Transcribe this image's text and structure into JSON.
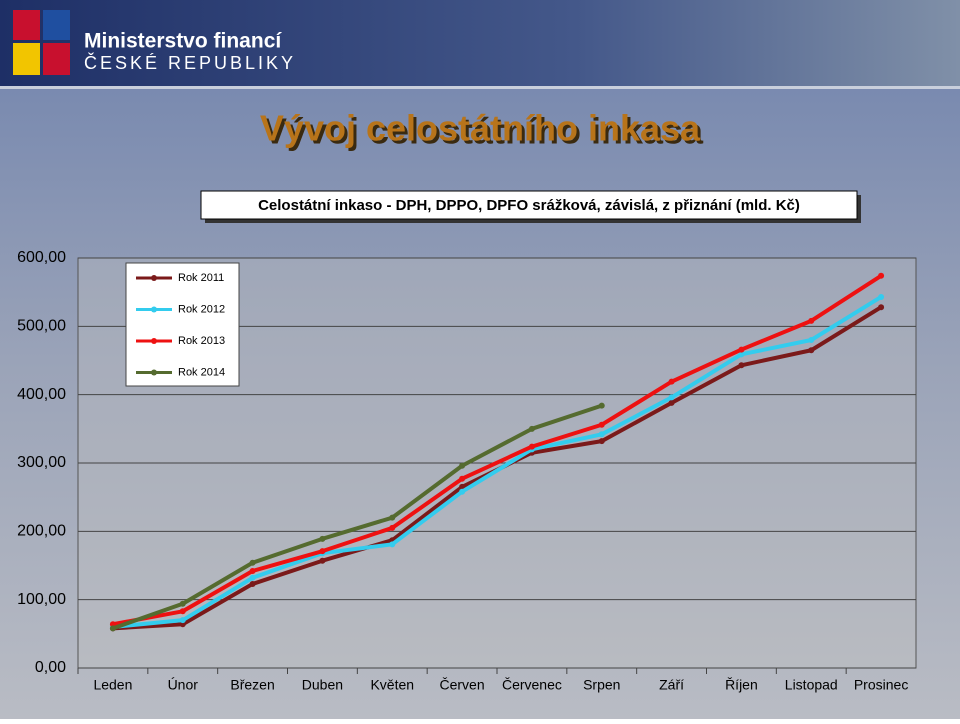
{
  "header": {
    "line1": "Ministerstvo financí",
    "line2": "ČESKÉ REPUBLIKY"
  },
  "slide_title": "Vývoj celostátního inkasa",
  "chart_data": {
    "type": "line",
    "title": "Celostátní inkaso - DPH, DPPO, DPFO srážková, závislá, z přiznání (mld. Kč)",
    "categories": [
      "Leden",
      "Únor",
      "Březen",
      "Duben",
      "Květen",
      "Červen",
      "Červenec",
      "Srpen",
      "Září",
      "Říjen",
      "Listopad",
      "Prosinec"
    ],
    "series": [
      {
        "name": "Rok 2011",
        "color": "#7b1a1a",
        "values": [
          58,
          64,
          123,
          157,
          187,
          265,
          315,
          332,
          388,
          443,
          465,
          528
        ]
      },
      {
        "name": "Rok 2012",
        "color": "#33ccee",
        "values": [
          60,
          70,
          132,
          168,
          181,
          258,
          320,
          342,
          396,
          459,
          480,
          543
        ]
      },
      {
        "name": "Rok 2013",
        "color": "#ee1111",
        "values": [
          64,
          83,
          142,
          171,
          205,
          277,
          324,
          356,
          419,
          466,
          508,
          574
        ]
      },
      {
        "name": "Rok 2014",
        "color": "#556b2f",
        "values": [
          58,
          94,
          154,
          189,
          220,
          296,
          350,
          384,
          null,
          null,
          null,
          null
        ]
      }
    ],
    "ylim": [
      0,
      600
    ],
    "yticks": [
      {
        "value": 0,
        "label": "0,00"
      },
      {
        "value": 100,
        "label": "100,00"
      },
      {
        "value": 200,
        "label": "200,00"
      },
      {
        "value": 300,
        "label": "300,00"
      },
      {
        "value": 400,
        "label": "400,00"
      },
      {
        "value": 500,
        "label": "500,00"
      },
      {
        "value": 600,
        "label": "600,00"
      }
    ],
    "grid": true,
    "legend": "upper left"
  }
}
